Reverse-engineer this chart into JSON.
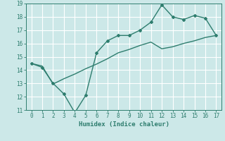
{
  "xlabel": "Humidex (Indice chaleur)",
  "x": [
    0,
    1,
    2,
    3,
    4,
    5,
    6,
    7,
    8,
    9,
    10,
    11,
    12,
    13,
    14,
    15,
    16,
    17
  ],
  "line1_y": [
    14.5,
    14.2,
    13.0,
    12.2,
    10.8,
    12.1,
    15.3,
    16.2,
    16.6,
    16.6,
    17.0,
    17.6,
    18.9,
    18.0,
    17.8,
    18.1,
    17.9,
    16.6
  ],
  "line2_y": [
    14.5,
    14.3,
    12.95,
    13.35,
    13.7,
    14.1,
    14.45,
    14.85,
    15.3,
    15.55,
    15.85,
    16.1,
    15.6,
    15.75,
    16.0,
    16.2,
    16.45,
    16.6
  ],
  "line_color": "#2e7d6e",
  "bg_color": "#cce8e8",
  "grid_color": "#ffffff",
  "ylim": [
    11,
    19
  ],
  "xlim": [
    -0.5,
    17.5
  ],
  "yticks": [
    11,
    12,
    13,
    14,
    15,
    16,
    17,
    18,
    19
  ],
  "xticks": [
    0,
    1,
    2,
    3,
    4,
    5,
    6,
    7,
    8,
    9,
    10,
    11,
    12,
    13,
    14,
    15,
    16,
    17
  ],
  "marker": "D",
  "marker_size": 2.0,
  "line_width": 1.0,
  "font_size_tick": 5.5,
  "font_size_xlabel": 6.5,
  "font_color": "#2e7d6e"
}
